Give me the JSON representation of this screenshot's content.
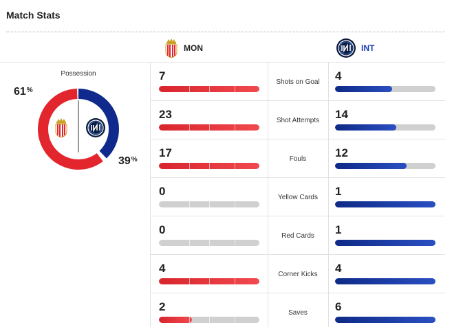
{
  "header": {
    "title": "Match Stats"
  },
  "teams": {
    "home": {
      "abbr": "MON",
      "color": "#e3262e",
      "icon": "monaco-crest-icon"
    },
    "away": {
      "abbr": "INT",
      "color": "#0f2a8c",
      "icon": "inter-crest-icon"
    }
  },
  "possession": {
    "title": "Possession",
    "home_value": "61",
    "away_value": "39",
    "home_fraction": 0.61,
    "away_fraction": 0.39,
    "unit": "%"
  },
  "stats": [
    {
      "label": "Shots on Goal",
      "home": "7",
      "away": "4",
      "home_fill": 1.0,
      "away_fill": 0.57
    },
    {
      "label": "Shot Attempts",
      "home": "23",
      "away": "14",
      "home_fill": 1.0,
      "away_fill": 0.61
    },
    {
      "label": "Fouls",
      "home": "17",
      "away": "12",
      "home_fill": 1.0,
      "away_fill": 0.71
    },
    {
      "label": "Yellow Cards",
      "home": "0",
      "away": "1",
      "home_fill": 0.0,
      "away_fill": 1.0
    },
    {
      "label": "Red Cards",
      "home": "0",
      "away": "1",
      "home_fill": 0.0,
      "away_fill": 1.0
    },
    {
      "label": "Corner Kicks",
      "home": "4",
      "away": "4",
      "home_fill": 1.0,
      "away_fill": 1.0
    },
    {
      "label": "Saves",
      "home": "2",
      "away": "6",
      "home_fill": 0.33,
      "away_fill": 1.0
    }
  ]
}
